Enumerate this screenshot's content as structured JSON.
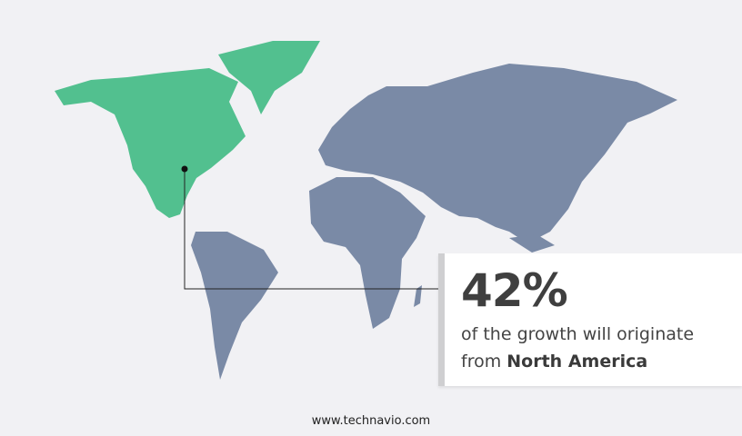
{
  "callout": {
    "value": "42%",
    "line1": "of the growth will originate",
    "line2_prefix": "from ",
    "region": "North America"
  },
  "footer": {
    "website": "www.technavio.com"
  },
  "colors": {
    "highlight_region": "#52c08f",
    "other_regions": "#7a8aa6",
    "background": "#f1f1f4"
  },
  "map": {
    "highlighted_region": "North America"
  }
}
